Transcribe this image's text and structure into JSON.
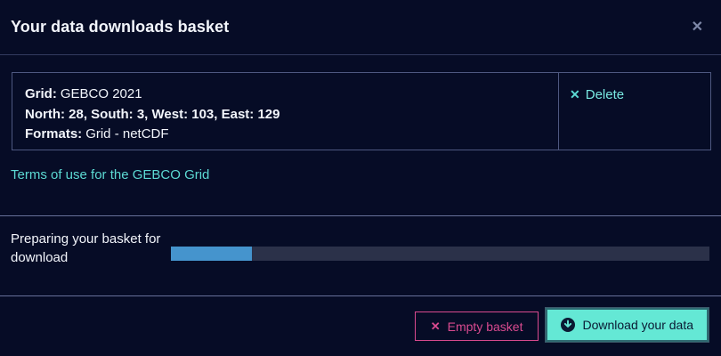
{
  "modal": {
    "title": "Your data downloads basket",
    "close_icon": "✕"
  },
  "basket_item": {
    "grid_label": "Grid:",
    "grid_value": "GEBCO 2021",
    "bounds": "North: 28, South: 3, West: 103, East: 129",
    "formats_label": "Formats:",
    "formats_value": "Grid - netCDF",
    "delete_icon": "✕",
    "delete_label": "Delete"
  },
  "terms_link_label": "Terms of use for the GEBCO Grid",
  "progress": {
    "label": "Preparing your basket for download",
    "percent": 15
  },
  "footer": {
    "empty_icon": "✕",
    "empty_basket_label": "Empty basket",
    "download_label": "Download your data"
  },
  "colors": {
    "accent_teal": "#5cd9d3",
    "accent_pink": "#d94a8f",
    "progress_fill": "#4594cd",
    "button_teal": "#64e8d5",
    "background": "#060c26"
  }
}
